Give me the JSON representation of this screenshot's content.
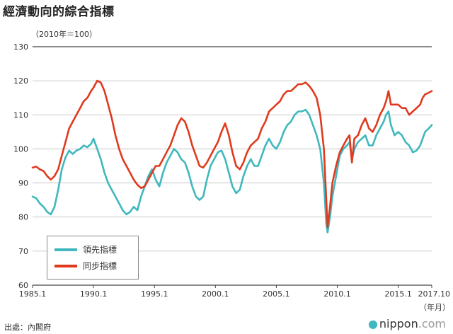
{
  "title": "經濟動向的綜合指標",
  "unit_label": "（2010年＝100）",
  "source": "出處：內閣府",
  "brand": {
    "main": "nippon",
    "suffix": ".com"
  },
  "x_unit_label": "（年月）",
  "colors": {
    "leading": "#3fb8be",
    "coincident": "#e03a1e"
  },
  "chart_data": {
    "type": "line",
    "title": "經濟動向的綜合指標",
    "ylabel": "（2010年＝100）",
    "xlabel": "（年月）",
    "ylim": [
      60,
      130
    ],
    "xlim": [
      1985.0,
      2017.75
    ],
    "yticks": [
      60,
      70,
      80,
      90,
      100,
      110,
      120,
      130
    ],
    "xticks": [
      {
        "value": 1985.0,
        "label": "1985.1"
      },
      {
        "value": 1990.0,
        "label": "1990.1"
      },
      {
        "value": 1995.0,
        "label": "1995.1"
      },
      {
        "value": 2000.0,
        "label": "2000.1"
      },
      {
        "value": 2005.0,
        "label": "2005.1"
      },
      {
        "value": 2010.0,
        "label": "2010.1"
      },
      {
        "value": 2015.0,
        "label": "2015.1"
      },
      {
        "value": 2017.75,
        "label": "2017.10"
      }
    ],
    "grid": "horizontal",
    "legend": "bottom-left",
    "series": [
      {
        "name": "領先指標",
        "color": "#3fb8be",
        "points": [
          [
            1985.0,
            86
          ],
          [
            1985.3,
            85.5
          ],
          [
            1985.6,
            84
          ],
          [
            1985.9,
            83
          ],
          [
            1986.2,
            81.5
          ],
          [
            1986.5,
            80.8
          ],
          [
            1986.8,
            83
          ],
          [
            1987.1,
            88
          ],
          [
            1987.4,
            94
          ],
          [
            1987.7,
            97.5
          ],
          [
            1988.0,
            99.5
          ],
          [
            1988.3,
            98.5
          ],
          [
            1988.6,
            99.5
          ],
          [
            1988.9,
            100
          ],
          [
            1989.2,
            101
          ],
          [
            1989.5,
            100.5
          ],
          [
            1989.8,
            101.5
          ],
          [
            1990.0,
            103
          ],
          [
            1990.3,
            100
          ],
          [
            1990.6,
            97
          ],
          [
            1990.9,
            93
          ],
          [
            1991.2,
            90
          ],
          [
            1991.5,
            88
          ],
          [
            1991.8,
            86
          ],
          [
            1992.1,
            84
          ],
          [
            1992.4,
            82
          ],
          [
            1992.7,
            80.8
          ],
          [
            1993.0,
            81.5
          ],
          [
            1993.3,
            83
          ],
          [
            1993.6,
            82
          ],
          [
            1993.9,
            86
          ],
          [
            1994.2,
            89
          ],
          [
            1994.5,
            92
          ],
          [
            1994.8,
            94
          ],
          [
            1995.1,
            91
          ],
          [
            1995.4,
            89
          ],
          [
            1995.7,
            93
          ],
          [
            1996.0,
            96
          ],
          [
            1996.3,
            98
          ],
          [
            1996.6,
            100
          ],
          [
            1996.9,
            99
          ],
          [
            1997.2,
            97
          ],
          [
            1997.5,
            96
          ],
          [
            1997.8,
            93
          ],
          [
            1998.1,
            89
          ],
          [
            1998.4,
            86
          ],
          [
            1998.7,
            85
          ],
          [
            1999.0,
            86
          ],
          [
            1999.3,
            91
          ],
          [
            1999.6,
            95
          ],
          [
            1999.9,
            97
          ],
          [
            2000.2,
            99
          ],
          [
            2000.5,
            99.5
          ],
          [
            2000.8,
            97
          ],
          [
            2001.1,
            93
          ],
          [
            2001.4,
            89
          ],
          [
            2001.7,
            87
          ],
          [
            2002.0,
            88
          ],
          [
            2002.3,
            92
          ],
          [
            2002.6,
            95
          ],
          [
            2002.9,
            97
          ],
          [
            2003.2,
            95
          ],
          [
            2003.5,
            95
          ],
          [
            2003.8,
            98
          ],
          [
            2004.1,
            101
          ],
          [
            2004.4,
            103
          ],
          [
            2004.7,
            101
          ],
          [
            2005.0,
            100
          ],
          [
            2005.3,
            102
          ],
          [
            2005.6,
            105
          ],
          [
            2005.9,
            107
          ],
          [
            2006.2,
            108
          ],
          [
            2006.5,
            110
          ],
          [
            2006.8,
            111
          ],
          [
            2007.1,
            111
          ],
          [
            2007.4,
            111.5
          ],
          [
            2007.7,
            110
          ],
          [
            2008.0,
            107
          ],
          [
            2008.3,
            104
          ],
          [
            2008.6,
            100
          ],
          [
            2008.9,
            90
          ],
          [
            2009.1,
            78
          ],
          [
            2009.2,
            75.5
          ],
          [
            2009.4,
            80
          ],
          [
            2009.6,
            86
          ],
          [
            2009.9,
            92
          ],
          [
            2010.2,
            98
          ],
          [
            2010.5,
            100
          ],
          [
            2010.8,
            101
          ],
          [
            2011.0,
            102
          ],
          [
            2011.2,
            97
          ],
          [
            2011.4,
            100
          ],
          [
            2011.7,
            102
          ],
          [
            2012.0,
            103
          ],
          [
            2012.3,
            104
          ],
          [
            2012.6,
            101
          ],
          [
            2012.9,
            101
          ],
          [
            2013.2,
            104
          ],
          [
            2013.5,
            106
          ],
          [
            2013.8,
            108
          ],
          [
            2014.0,
            110
          ],
          [
            2014.2,
            111
          ],
          [
            2014.4,
            107
          ],
          [
            2014.7,
            104
          ],
          [
            2015.0,
            105
          ],
          [
            2015.3,
            104
          ],
          [
            2015.6,
            102
          ],
          [
            2015.9,
            101
          ],
          [
            2016.2,
            99
          ],
          [
            2016.5,
            99.5
          ],
          [
            2016.8,
            101
          ],
          [
            2017.0,
            103
          ],
          [
            2017.2,
            105
          ],
          [
            2017.5,
            106
          ],
          [
            2017.75,
            107
          ]
        ]
      },
      {
        "name": "同步指標",
        "color": "#e03a1e",
        "points": [
          [
            1985.0,
            94.5
          ],
          [
            1985.3,
            94.8
          ],
          [
            1985.6,
            94
          ],
          [
            1985.9,
            93.5
          ],
          [
            1986.2,
            92
          ],
          [
            1986.5,
            91
          ],
          [
            1986.8,
            92
          ],
          [
            1987.1,
            94
          ],
          [
            1987.4,
            98
          ],
          [
            1987.7,
            102
          ],
          [
            1988.0,
            106
          ],
          [
            1988.3,
            108
          ],
          [
            1988.6,
            110
          ],
          [
            1988.9,
            112
          ],
          [
            1989.2,
            114
          ],
          [
            1989.5,
            115
          ],
          [
            1989.8,
            117
          ],
          [
            1990.0,
            118
          ],
          [
            1990.3,
            120
          ],
          [
            1990.6,
            119.5
          ],
          [
            1990.9,
            117
          ],
          [
            1991.2,
            113
          ],
          [
            1991.5,
            109
          ],
          [
            1991.8,
            104
          ],
          [
            1992.1,
            100
          ],
          [
            1992.4,
            97
          ],
          [
            1992.7,
            95
          ],
          [
            1993.0,
            93
          ],
          [
            1993.3,
            91
          ],
          [
            1993.6,
            89.5
          ],
          [
            1993.9,
            88.5
          ],
          [
            1994.2,
            89
          ],
          [
            1994.5,
            91
          ],
          [
            1994.8,
            93
          ],
          [
            1995.1,
            95
          ],
          [
            1995.4,
            95
          ],
          [
            1995.7,
            97
          ],
          [
            1996.0,
            99
          ],
          [
            1996.3,
            101
          ],
          [
            1996.6,
            104
          ],
          [
            1996.9,
            107
          ],
          [
            1997.2,
            109
          ],
          [
            1997.5,
            108
          ],
          [
            1997.8,
            105
          ],
          [
            1998.1,
            101
          ],
          [
            1998.4,
            98
          ],
          [
            1998.7,
            95
          ],
          [
            1999.0,
            94.5
          ],
          [
            1999.3,
            96
          ],
          [
            1999.6,
            98
          ],
          [
            1999.9,
            100
          ],
          [
            2000.2,
            102
          ],
          [
            2000.5,
            105
          ],
          [
            2000.8,
            107.5
          ],
          [
            2001.1,
            104
          ],
          [
            2001.4,
            99
          ],
          [
            2001.7,
            95
          ],
          [
            2002.0,
            94
          ],
          [
            2002.3,
            96
          ],
          [
            2002.6,
            99
          ],
          [
            2002.9,
            101
          ],
          [
            2003.2,
            102
          ],
          [
            2003.5,
            103
          ],
          [
            2003.8,
            106
          ],
          [
            2004.1,
            108
          ],
          [
            2004.4,
            111
          ],
          [
            2004.7,
            112
          ],
          [
            2005.0,
            113
          ],
          [
            2005.3,
            114
          ],
          [
            2005.6,
            116
          ],
          [
            2005.9,
            117
          ],
          [
            2006.2,
            117
          ],
          [
            2006.5,
            118
          ],
          [
            2006.8,
            119
          ],
          [
            2007.1,
            119
          ],
          [
            2007.4,
            119.5
          ],
          [
            2007.7,
            118.5
          ],
          [
            2008.0,
            117
          ],
          [
            2008.3,
            115
          ],
          [
            2008.6,
            110
          ],
          [
            2008.9,
            100
          ],
          [
            2009.1,
            85
          ],
          [
            2009.2,
            77
          ],
          [
            2009.4,
            83
          ],
          [
            2009.6,
            90
          ],
          [
            2009.9,
            95
          ],
          [
            2010.2,
            99
          ],
          [
            2010.5,
            101
          ],
          [
            2010.8,
            103
          ],
          [
            2011.0,
            104
          ],
          [
            2011.2,
            96
          ],
          [
            2011.4,
            103
          ],
          [
            2011.7,
            104
          ],
          [
            2012.0,
            107
          ],
          [
            2012.3,
            109
          ],
          [
            2012.6,
            106
          ],
          [
            2012.9,
            105
          ],
          [
            2013.2,
            107
          ],
          [
            2013.5,
            110
          ],
          [
            2013.8,
            112
          ],
          [
            2014.0,
            114
          ],
          [
            2014.2,
            117
          ],
          [
            2014.4,
            113
          ],
          [
            2014.7,
            113
          ],
          [
            2015.0,
            113
          ],
          [
            2015.3,
            112
          ],
          [
            2015.6,
            112
          ],
          [
            2015.9,
            110
          ],
          [
            2016.2,
            111
          ],
          [
            2016.5,
            112
          ],
          [
            2016.8,
            113
          ],
          [
            2017.0,
            115
          ],
          [
            2017.2,
            116
          ],
          [
            2017.5,
            116.5
          ],
          [
            2017.75,
            117
          ]
        ]
      }
    ]
  }
}
